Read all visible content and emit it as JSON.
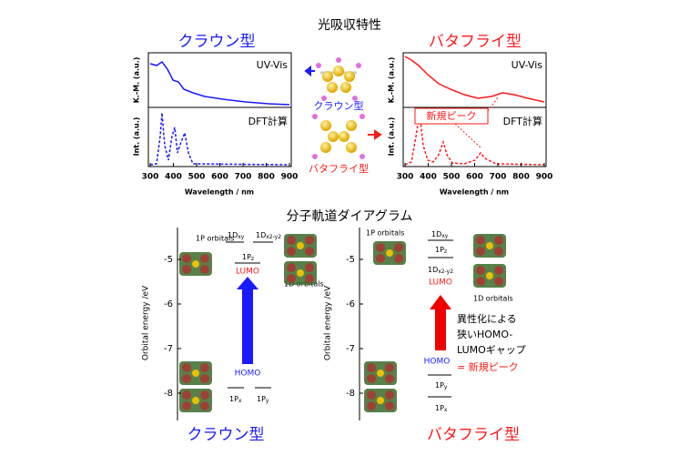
{
  "top_title": "光吸収特性",
  "left_panel": {
    "title": "クラウン型",
    "upper_label": "UV-Vis",
    "lower_label": "DFT計算",
    "ylabel_upper": "K.-M. (a.u.)",
    "ylabel_lower": "Int. (a.u.)",
    "xlabel": "Wavelength / nm",
    "xticks": [
      300,
      400,
      500,
      600,
      700,
      800,
      900
    ]
  },
  "right_panel": {
    "title": "バタフライ型",
    "upper_label": "UV-Vis",
    "lower_label": "DFT計算",
    "ylabel_upper": "K.-M. (a.u.)",
    "ylabel_lower": "Int. (a.u.)",
    "xlabel": "Wavelength / nm",
    "xticks": [
      300,
      400,
      500,
      600,
      700,
      800,
      900
    ],
    "annotation": "新規ピーク"
  },
  "middle": {
    "crown_label": "クラウン型",
    "butterfly_label": "バタフライ型"
  },
  "bottom_title": "分子軌道ダイアグラム",
  "left_diagram": {
    "title": "クラウン型",
    "axis_label": "Orbital energy /eV",
    "yticks": [
      -5,
      -6,
      -7,
      -8
    ],
    "p_orbitals": "1P orbitals",
    "d_orbitals": "1D orbitals",
    "lumo": "LUMO",
    "homo": "HOMO",
    "dxy": {
      "main": "1D",
      "sub": "xy"
    },
    "dx2y2": {
      "main": "1D",
      "sub": "x2-y2"
    },
    "pz": {
      "main": "1P",
      "sub": "z"
    },
    "px": {
      "main": "1P",
      "sub": "x"
    },
    "py": {
      "main": "1P",
      "sub": "y"
    }
  },
  "right_diagram": {
    "title": "バタフライ型",
    "axis_label": "Orbital energy /eV",
    "yticks": [
      -5,
      -6,
      -7,
      -8
    ],
    "p_orbitals": "1P orbitals",
    "d_orbitals": "1D orbitals",
    "lumo": "LUMO",
    "homo": "HOMO",
    "dxy": {
      "main": "1D",
      "sub": "xy"
    },
    "dx2y2": {
      "main": "1D",
      "sub": "x2-y2"
    },
    "pz": {
      "main": "1P",
      "sub": "z"
    },
    "px": {
      "main": "1P",
      "sub": "x"
    },
    "py": {
      "main": "1P",
      "sub": "y"
    },
    "note": [
      "異性化による",
      "狭いHOMO-",
      "LUMOギャップ"
    ],
    "note_highlight": "= 新規ピーク"
  }
}
